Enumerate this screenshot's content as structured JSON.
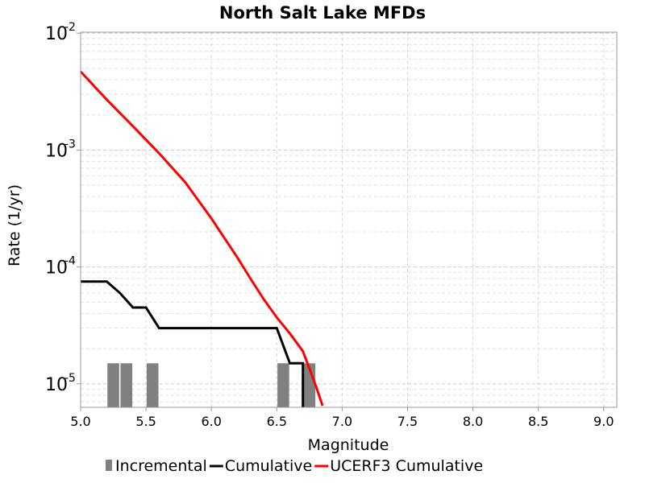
{
  "chart_data": {
    "type": "bar+line",
    "title": "North Salt Lake MFDs",
    "xlabel": "Magnitude",
    "ylabel": "Rate (1/yr)",
    "xlim": [
      5.0,
      9.1
    ],
    "ylim": [
      6.3e-06,
      0.0102
    ],
    "yscale": "log",
    "grid": true,
    "legend_position": "bottom",
    "x_ticks": [
      "5.0",
      "5.5",
      "6.0",
      "6.5",
      "7.0",
      "7.5",
      "8.0",
      "8.5",
      "9.0"
    ],
    "y_ticks": [
      {
        "base": "10",
        "exp": "-2",
        "value": 0.01
      },
      {
        "base": "10",
        "exp": "-3",
        "value": 0.001
      },
      {
        "base": "10",
        "exp": "-4",
        "value": 0.0001
      },
      {
        "base": "10",
        "exp": "-5",
        "value": 1e-05
      }
    ],
    "series": [
      {
        "name": "Incremental",
        "kind": "bar",
        "color": "#808080",
        "x": [
          5.25,
          5.35,
          5.55,
          6.55,
          6.75
        ],
        "values": [
          1.5e-05,
          1.5e-05,
          1.5e-05,
          1.5e-05,
          1.5e-05
        ]
      },
      {
        "name": "Cumulative",
        "kind": "line",
        "color": "#000000",
        "x": [
          5.0,
          5.2,
          5.3,
          5.4,
          5.5,
          5.6,
          6.5,
          6.6,
          6.7,
          6.7
        ],
        "values": [
          7.5e-05,
          7.5e-05,
          6e-05,
          4.5e-05,
          4.5e-05,
          3e-05,
          3e-05,
          1.5e-05,
          1.5e-05,
          6e-06
        ]
      },
      {
        "name": "UCERF3 Cumulative",
        "kind": "line",
        "color": "#ff0000",
        "x": [
          5.0,
          5.2,
          5.4,
          5.6,
          5.8,
          6.0,
          6.2,
          6.3,
          6.4,
          6.5,
          6.6,
          6.7,
          6.75,
          6.8,
          6.85
        ],
        "values": [
          0.0047,
          0.0027,
          0.0016,
          0.00094,
          0.00053,
          0.00026,
          0.00012,
          7.9e-05,
          5.3e-05,
          3.7e-05,
          2.7e-05,
          1.9e-05,
          1.35e-05,
          9.5e-06,
          6.5e-06
        ]
      }
    ]
  }
}
